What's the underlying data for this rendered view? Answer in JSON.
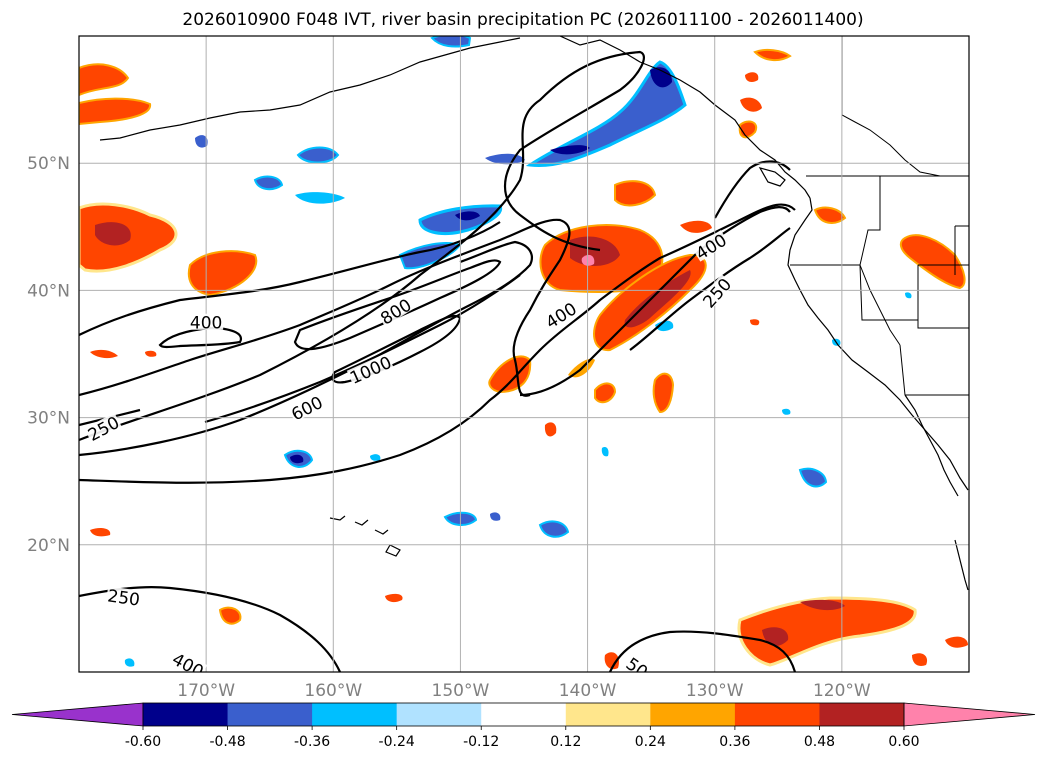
{
  "title": "2026010900 F048 IVT, river basin precipitation PC (2026011100 - 2026011400)",
  "map": {
    "lon_range": [
      -180,
      -110
    ],
    "lat_range": [
      10,
      60
    ],
    "x_ticks": [
      {
        "lon": -170,
        "label": "170°W"
      },
      {
        "lon": -160,
        "label": "160°W"
      },
      {
        "lon": -150,
        "label": "150°W"
      },
      {
        "lon": -140,
        "label": "140°W"
      },
      {
        "lon": -130,
        "label": "130°W"
      },
      {
        "lon": -120,
        "label": "120°W"
      }
    ],
    "y_ticks": [
      {
        "lat": 20,
        "label": "20°N"
      },
      {
        "lat": 30,
        "label": "30°N"
      },
      {
        "lat": 40,
        "label": "40°N"
      },
      {
        "lat": 50,
        "label": "50°N"
      }
    ],
    "grid": true,
    "tick_color": "#808080",
    "contour_labels": [
      {
        "text": "250",
        "lon": -178.0,
        "lat": 29.0,
        "rot": -28
      },
      {
        "text": "400",
        "lon": -170.0,
        "lat": 37.3,
        "rot": 0
      },
      {
        "text": "800",
        "lon": -155.0,
        "lat": 38.2,
        "rot": -32
      },
      {
        "text": "1000",
        "lon": -157.0,
        "lat": 33.6,
        "rot": -24
      },
      {
        "text": "600",
        "lon": -162.0,
        "lat": 30.6,
        "rot": -27
      },
      {
        "text": "400",
        "lon": -142.0,
        "lat": 37.9,
        "rot": -32
      },
      {
        "text": "400",
        "lon": -130.2,
        "lat": 43.3,
        "rot": -32
      },
      {
        "text": "250",
        "lon": -129.7,
        "lat": 39.7,
        "rot": -48
      },
      {
        "text": "250",
        "lon": -176.5,
        "lat": 15.7,
        "rot": 8
      },
      {
        "text": "400",
        "lon": -171.5,
        "lat": 10.4,
        "rot": 28
      },
      {
        "text": "50",
        "lon": -136.2,
        "lat": 10.2,
        "rot": 35
      }
    ]
  },
  "colorbar": {
    "ticks": [
      "-0.60",
      "-0.48",
      "-0.36",
      "-0.24",
      "-0.12",
      "0.12",
      "0.24",
      "0.36",
      "0.48",
      "0.60"
    ],
    "colors": [
      "#9932cc",
      "#00008b",
      "#3a5fcd",
      "#00bfff",
      "#b0e2ff",
      "#ffffff",
      "#ffe68c",
      "#ffa500",
      "#ff4500",
      "#b22222",
      "#ff82ab"
    ]
  },
  "chart_data": {
    "type": "map",
    "variable": "IVT",
    "contour_levels": [
      250,
      400,
      600,
      800,
      1000
    ],
    "shading": "river basin precipitation PC",
    "colorbar_range": [
      -0.6,
      0.6
    ]
  }
}
